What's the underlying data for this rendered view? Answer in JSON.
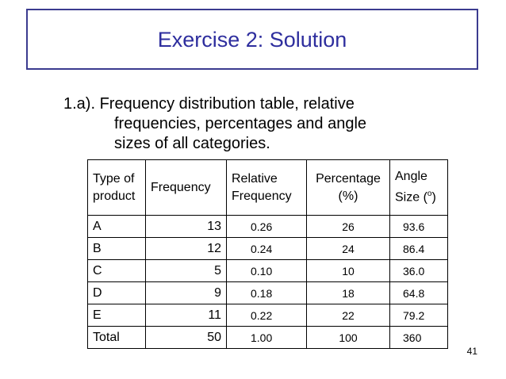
{
  "slide": {
    "title": "Exercise 2: Solution",
    "subtitle_line1": "1.a). Frequency distribution table, relative",
    "subtitle_line2": "frequencies, percentages and angle",
    "subtitle_line3": "sizes of all categories.",
    "page_number": "41"
  },
  "table": {
    "headers": {
      "type_line1": "Type of",
      "type_line2": "product",
      "frequency": "Frequency",
      "relative_line1": "Relative",
      "relative_line2": "Frequency",
      "percentage_line1": "Percentage",
      "percentage_line2": "(%)",
      "angle_line1": "Angle",
      "angle_line2_prefix": "Size (",
      "angle_line2_sup": "o",
      "angle_line2_suffix": ")"
    },
    "rows": [
      {
        "type": "A",
        "frequency": "13",
        "relative": "0.26",
        "percentage": "26",
        "angle": "93.6"
      },
      {
        "type": "B",
        "frequency": "12",
        "relative": "0.24",
        "percentage": "24",
        "angle": "86.4"
      },
      {
        "type": "C",
        "frequency": "5",
        "relative": "0.10",
        "percentage": "10",
        "angle": "36.0"
      },
      {
        "type": "D",
        "frequency": "9",
        "relative": "0.18",
        "percentage": "18",
        "angle": "64.8"
      },
      {
        "type": "E",
        "frequency": "11",
        "relative": "0.22",
        "percentage": "22",
        "angle": "79.2"
      },
      {
        "type": "Total",
        "frequency": "50",
        "relative": "1.00",
        "percentage": "100",
        "angle": "360"
      }
    ]
  },
  "colors": {
    "title": "#2e2e9e",
    "title_border": "#3b3b8f"
  }
}
